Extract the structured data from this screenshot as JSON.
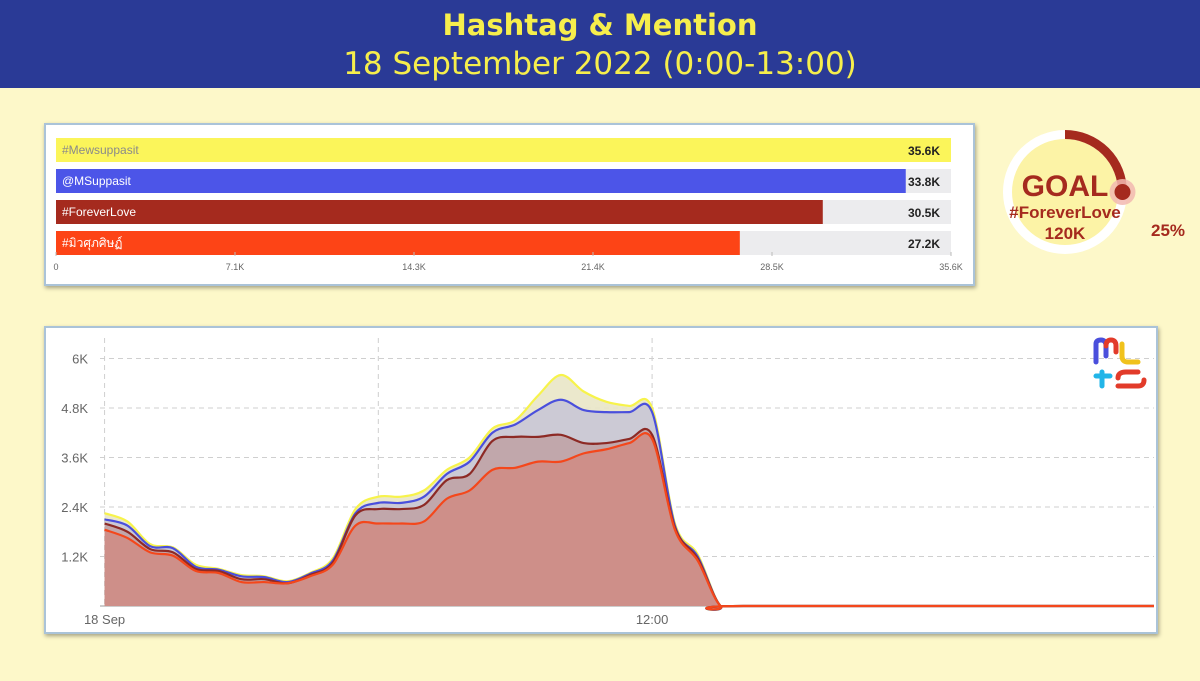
{
  "header": {
    "title": "Hashtag & Mention",
    "subtitle": "18 September 2022 (0:00-13:00)"
  },
  "goal": {
    "label": "GOAL",
    "hashtag": "#ForeverLove",
    "target": "120K",
    "percent_label": "25%",
    "progress": 0.25,
    "color": "#a52a1e"
  },
  "chart_data": [
    {
      "type": "bar",
      "orientation": "horizontal",
      "categories": [
        "#Mewsuppasit",
        "@MSuppasit",
        "#ForeverLove",
        "#มิวศุภศิษฏ์"
      ],
      "values": [
        35.6,
        33.8,
        30.5,
        27.2
      ],
      "value_labels": [
        "35.6K",
        "33.8K",
        "30.5K",
        "27.2K"
      ],
      "colors": [
        "#fbf55a",
        "#4c55e8",
        "#a52a1e",
        "#fd4416"
      ],
      "xlim": [
        0,
        35.6
      ],
      "xticks": [
        "0",
        "7.1K",
        "14.3K",
        "21.4K",
        "28.5K",
        "35.6K"
      ],
      "unit": "K"
    },
    {
      "type": "area",
      "x_ticks": [
        "18 Sep",
        "12:00"
      ],
      "ylim": [
        0,
        6.4
      ],
      "yticks": [
        "1.2K",
        "2.4K",
        "3.6K",
        "4.8K",
        "6K"
      ],
      "unit": "K",
      "grid": true,
      "x_range_hours": [
        -0.1,
        23.0
      ],
      "series": [
        {
          "color": "#f7f34b",
          "x": [
            0,
            0.5,
            1,
            1.5,
            2,
            2.5,
            3,
            3.5,
            4,
            4.5,
            5,
            5.5,
            6,
            6.5,
            7,
            7.5,
            8,
            8.5,
            9,
            9.5,
            10,
            10.5,
            11,
            11.5,
            12,
            12.5,
            13,
            13.5,
            14,
            23
          ],
          "y": [
            2.25,
            2.05,
            1.5,
            1.42,
            1.0,
            0.9,
            0.75,
            0.72,
            0.6,
            0.8,
            1.15,
            2.35,
            2.65,
            2.65,
            2.8,
            3.3,
            3.6,
            4.3,
            4.5,
            5.1,
            5.6,
            5.2,
            4.95,
            4.85,
            4.8,
            2.0,
            1.25,
            0.0,
            0.0,
            0.0
          ]
        },
        {
          "color": "#4a4fdc",
          "x": [
            0,
            0.5,
            1,
            1.5,
            2,
            2.5,
            3,
            3.5,
            4,
            4.5,
            5,
            5.5,
            6,
            6.5,
            7,
            7.5,
            8,
            8.5,
            9,
            9.5,
            10,
            10.5,
            11,
            11.5,
            12,
            12.5,
            13,
            13.5,
            14,
            23
          ],
          "y": [
            2.1,
            1.95,
            1.45,
            1.4,
            0.95,
            0.88,
            0.72,
            0.7,
            0.58,
            0.78,
            1.1,
            2.25,
            2.5,
            2.5,
            2.65,
            3.2,
            3.5,
            4.2,
            4.4,
            4.75,
            5.0,
            4.75,
            4.7,
            4.7,
            4.7,
            1.95,
            1.2,
            0.0,
            0.0,
            0.0
          ]
        },
        {
          "color": "#8d2a25",
          "x": [
            0,
            0.5,
            1,
            1.5,
            2,
            2.5,
            3,
            3.5,
            4,
            4.5,
            5,
            5.5,
            6,
            6.5,
            7,
            7.5,
            8,
            8.5,
            9,
            9.5,
            10,
            10.5,
            11,
            11.5,
            12,
            12.5,
            13,
            13.5,
            14,
            23
          ],
          "y": [
            2.0,
            1.8,
            1.38,
            1.3,
            0.9,
            0.85,
            0.65,
            0.65,
            0.55,
            0.75,
            1.05,
            2.2,
            2.35,
            2.35,
            2.45,
            3.05,
            3.2,
            4.0,
            4.1,
            4.1,
            4.15,
            3.95,
            3.95,
            4.05,
            4.15,
            1.9,
            1.15,
            0.0,
            0.0,
            0.0
          ]
        },
        {
          "color": "#f4471b",
          "x": [
            0,
            0.5,
            1,
            1.5,
            2,
            2.5,
            3,
            3.5,
            4,
            4.5,
            5,
            5.5,
            6,
            6.5,
            7,
            7.5,
            8,
            8.5,
            9,
            9.5,
            10,
            10.5,
            11,
            11.5,
            12,
            12.5,
            13,
            13.5,
            14,
            23
          ],
          "y": [
            1.85,
            1.65,
            1.3,
            1.22,
            0.85,
            0.8,
            0.58,
            0.58,
            0.55,
            0.72,
            1.0,
            1.95,
            2.0,
            2.0,
            2.05,
            2.6,
            2.8,
            3.3,
            3.35,
            3.5,
            3.5,
            3.7,
            3.8,
            3.95,
            4.05,
            1.85,
            1.1,
            0.0,
            0.0,
            0.0
          ]
        }
      ],
      "fill_color": "#cf8d85"
    }
  ]
}
